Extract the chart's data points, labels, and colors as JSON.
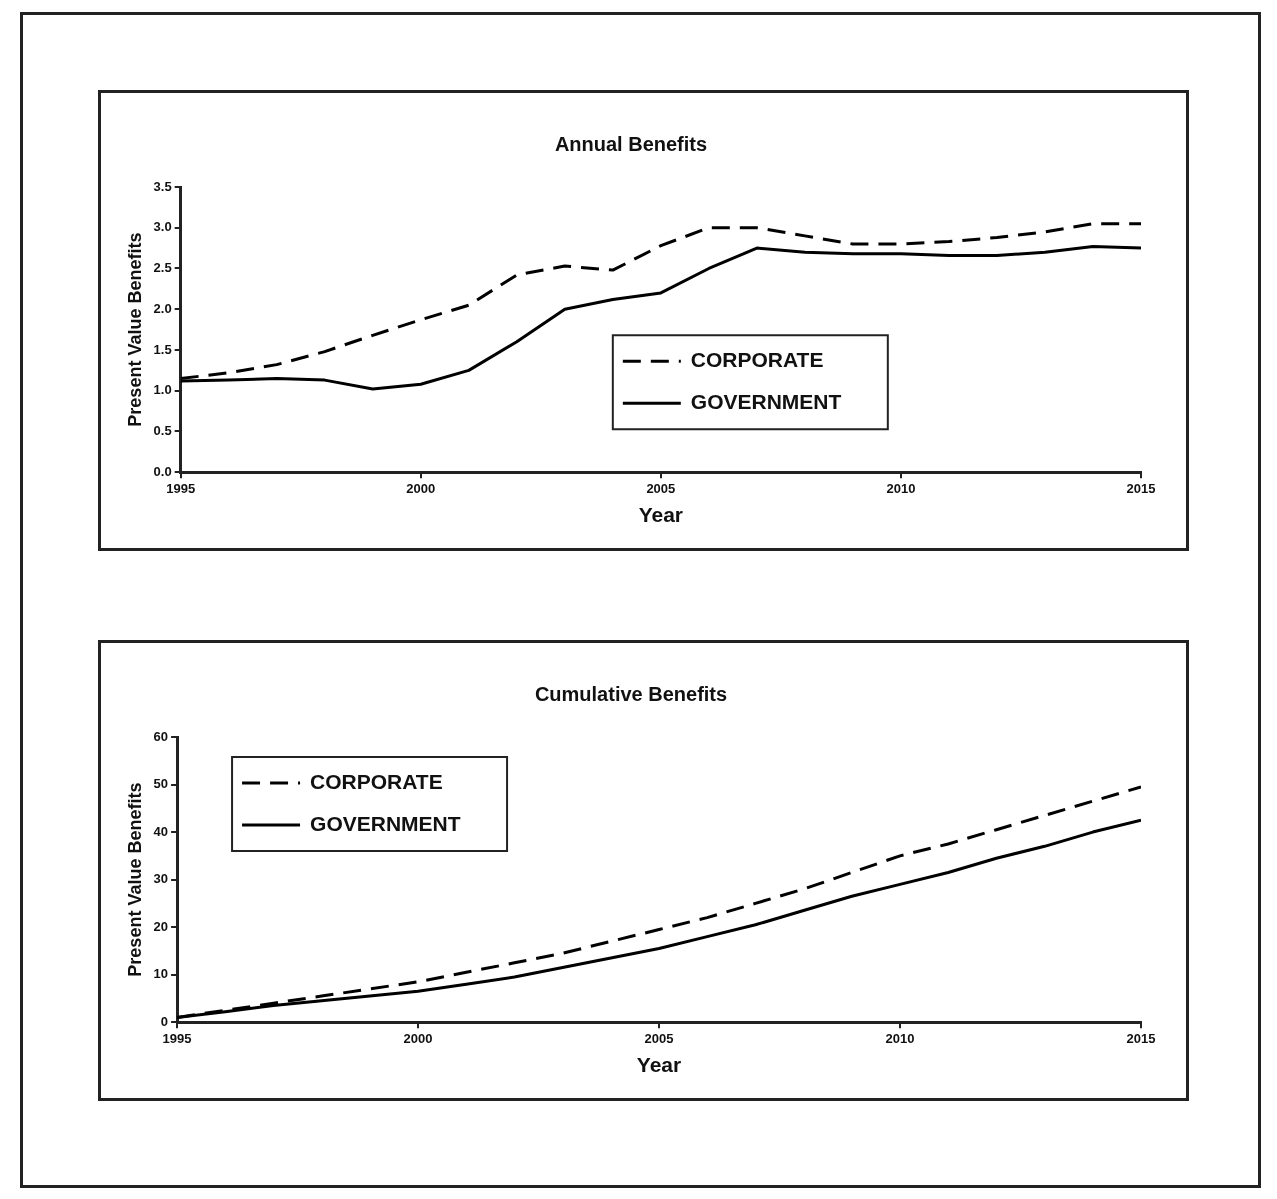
{
  "chart_data": [
    {
      "type": "line",
      "title": "Annual Benefits",
      "xlabel": "Year",
      "ylabel": "Present Value Benefits",
      "x": [
        1995,
        1996,
        1997,
        1998,
        1999,
        2000,
        2001,
        2002,
        2003,
        2004,
        2005,
        2006,
        2007,
        2008,
        2009,
        2010,
        2011,
        2012,
        2013,
        2014,
        2015
      ],
      "series": [
        {
          "name": "CORPORATE",
          "color": "#000000",
          "line_style": "dashed",
          "values": [
            1.15,
            1.22,
            1.32,
            1.48,
            1.68,
            1.87,
            2.05,
            2.42,
            2.53,
            2.48,
            2.78,
            3.0,
            3.0,
            2.9,
            2.8,
            2.8,
            2.83,
            2.88,
            2.95,
            3.05,
            3.05
          ]
        },
        {
          "name": "GOVERNMENT",
          "color": "#000000",
          "line_style": "solid",
          "values": [
            1.12,
            1.13,
            1.15,
            1.13,
            1.02,
            1.08,
            1.25,
            1.6,
            2.0,
            2.12,
            2.2,
            2.5,
            2.75,
            2.7,
            2.68,
            2.68,
            2.66,
            2.66,
            2.7,
            2.77,
            2.75
          ]
        }
      ],
      "xlim": [
        1995,
        2015
      ],
      "xticks": [
        1995,
        2000,
        2005,
        2010,
        2015
      ],
      "ylim": [
        0,
        3.5
      ],
      "yticks": [
        {
          "value": 0,
          "label": "0.0"
        },
        0.5,
        {
          "value": 1,
          "label": "1.0"
        },
        1.5,
        {
          "value": 2,
          "label": "2.0"
        },
        2.5,
        {
          "value": 3,
          "label": "3.0"
        },
        3.5
      ],
      "grid": false,
      "legend": "right",
      "marker": "none"
    },
    {
      "type": "line",
      "title": "Cumulative Benefits",
      "xlabel": "Year",
      "ylabel": "Present Value Benefits",
      "x": [
        1995,
        1996,
        1997,
        1998,
        1999,
        2000,
        2001,
        2002,
        2003,
        2004,
        2005,
        2006,
        2007,
        2008,
        2009,
        2010,
        2011,
        2012,
        2013,
        2014,
        2015
      ],
      "series": [
        {
          "name": "CORPORATE",
          "color": "#000000",
          "line_style": "dashed",
          "values": [
            1,
            2.5,
            4,
            5.5,
            7,
            8.5,
            10.5,
            12.5,
            14.5,
            17,
            19.5,
            22,
            25,
            28,
            31.5,
            35,
            37.5,
            40.5,
            43.5,
            46.5,
            49.5
          ]
        },
        {
          "name": "GOVERNMENT",
          "color": "#000000",
          "line_style": "solid",
          "values": [
            1,
            2.2,
            3.5,
            4.5,
            5.5,
            6.5,
            8,
            9.5,
            11.5,
            13.5,
            15.5,
            18,
            20.5,
            23.5,
            26.5,
            29,
            31.5,
            34.5,
            37,
            40,
            42.5
          ]
        }
      ],
      "xlim": [
        1995,
        2015
      ],
      "xticks": [
        1995,
        2000,
        2005,
        2010,
        2015
      ],
      "ylim": [
        0,
        60
      ],
      "yticks": [
        0,
        10,
        20,
        30,
        40,
        50,
        60
      ],
      "grid": false,
      "legend": "top left",
      "marker": "none"
    }
  ]
}
